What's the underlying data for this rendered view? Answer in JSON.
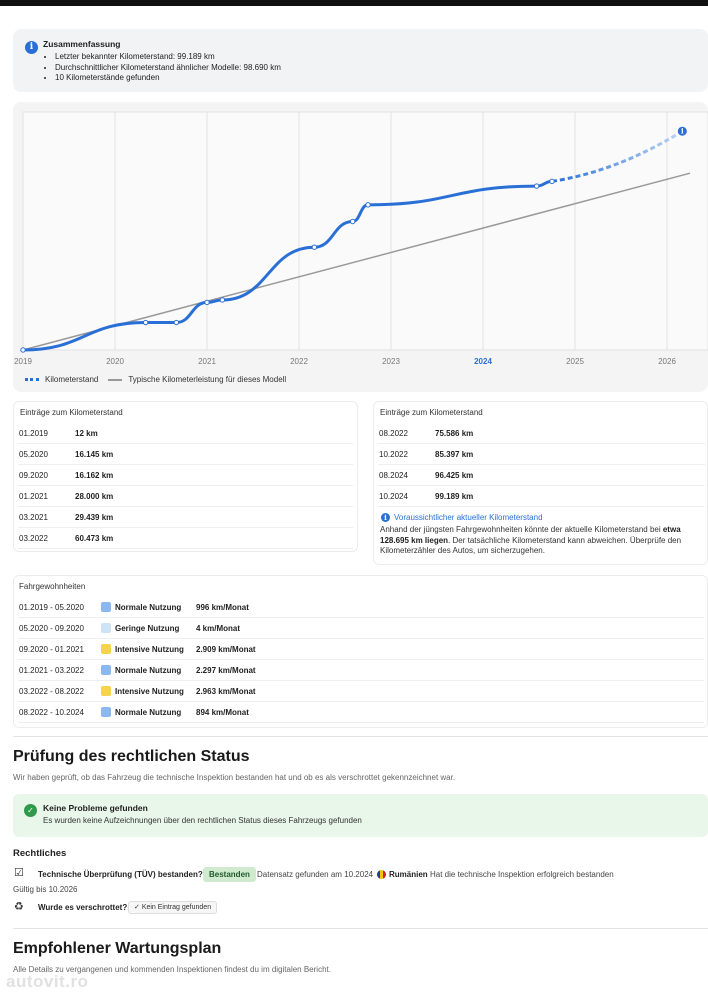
{
  "summary": {
    "icon": "info-icon",
    "title": "Zusammenfassung",
    "items": [
      "Letzter bekannter Kilometerstand: 99.189 km",
      "Durchschnittlicher Kilometerstand ähnlicher Modelle: 98.690 km",
      "10 Kilometerstände gefunden"
    ]
  },
  "chart_data": {
    "type": "line",
    "title": "",
    "xlabel": "",
    "ylabel": "",
    "x_ticks": [
      "2019",
      "2020",
      "2021",
      "2022",
      "2023",
      "2024",
      "2025",
      "2026"
    ],
    "highlighted_tick": "2024",
    "x_range": [
      2019.0,
      2026.3
    ],
    "y_range": [
      0,
      140000
    ],
    "grid": "vertical",
    "legend": "bottom-left",
    "colors": {
      "actual": "#2a6fd6",
      "typical": "#999999"
    },
    "series": [
      {
        "name": "Kilometerstand",
        "style": "solid",
        "points": [
          {
            "x": "01.2019",
            "y": 12
          },
          {
            "x": "05.2020",
            "y": 16145
          },
          {
            "x": "09.2020",
            "y": 16162
          },
          {
            "x": "01.2021",
            "y": 28000
          },
          {
            "x": "03.2021",
            "y": 29439
          },
          {
            "x": "03.2022",
            "y": 60473
          },
          {
            "x": "08.2022",
            "y": 75586
          },
          {
            "x": "10.2022",
            "y": 85397
          },
          {
            "x": "08.2024",
            "y": 96425
          },
          {
            "x": "10.2024",
            "y": 99189
          }
        ]
      },
      {
        "name": "Voraussichtlicher aktueller Kilometerstand",
        "style": "dashed",
        "points": [
          {
            "x": "10.2024",
            "y": 99189
          },
          {
            "x": "03.2026",
            "y": 128695
          }
        ]
      },
      {
        "name": "Typische Kilometerleistung für dieses Modell",
        "style": "solid",
        "points": [
          {
            "x": "01.2019",
            "y": 0
          },
          {
            "x": "04.2026",
            "y": 104000
          }
        ]
      }
    ],
    "legend_entries": [
      "Kilometerstand",
      "Typische Kilometerleistung für dieses Modell"
    ]
  },
  "entries": {
    "title": "Einträge zum Kilometerstand",
    "left": [
      {
        "date": "01.2019",
        "km": "12 km"
      },
      {
        "date": "05.2020",
        "km": "16.145 km"
      },
      {
        "date": "09.2020",
        "km": "16.162 km"
      },
      {
        "date": "01.2021",
        "km": "28.000 km"
      },
      {
        "date": "03.2021",
        "km": "29.439 km"
      },
      {
        "date": "03.2022",
        "km": "60.473 km"
      }
    ],
    "right": [
      {
        "date": "08.2022",
        "km": "75.586 km"
      },
      {
        "date": "10.2022",
        "km": "85.397 km"
      },
      {
        "date": "08.2024",
        "km": "96.425 km"
      },
      {
        "date": "10.2024",
        "km": "99.189 km"
      }
    ],
    "projection_title": "Voraussichtlicher aktueller Kilometerstand",
    "projection_pre": "Anhand der jüngsten Fahrgewohnheiten könnte der aktuelle Kilometerstand bei ",
    "projection_bold": "etwa 128.695 km liegen",
    "projection_post": ". Der tatsächliche Kilometerstand kann abweichen. Überprüfe den Kilometerzähler des Autos, um sicherzugehen."
  },
  "habits": {
    "title": "Fahrgewohnheiten",
    "rows": [
      {
        "period": "01.2019 - 05.2020",
        "usage": "Normale Nutzung",
        "color": "#8bb8ee",
        "rate": "996 km/Monat"
      },
      {
        "period": "05.2020 - 09.2020",
        "usage": "Geringe Nutzung",
        "color": "#cfe3f7",
        "rate": "4 km/Monat"
      },
      {
        "period": "09.2020 - 01.2021",
        "usage": "Intensive Nutzung",
        "color": "#f6d44a",
        "rate": "2.909 km/Monat"
      },
      {
        "period": "01.2021 - 03.2022",
        "usage": "Normale Nutzung",
        "color": "#8bb8ee",
        "rate": "2.297 km/Monat"
      },
      {
        "period": "03.2022 - 08.2022",
        "usage": "Intensive Nutzung",
        "color": "#f6d44a",
        "rate": "2.963 km/Monat"
      },
      {
        "period": "08.2022 - 10.2024",
        "usage": "Normale Nutzung",
        "color": "#8bb8ee",
        "rate": "894 km/Monat"
      }
    ]
  },
  "legal": {
    "heading": "Prüfung des rechtlichen Status",
    "subtitle": "Wir haben geprüft, ob das Fahrzeug die technische Inspektion bestanden hat und ob es als verschrottet gekennzeichnet war.",
    "ok_title": "Keine Probleme gefunden",
    "ok_text": "Es wurden keine Aufzeichnungen über den rechtlichen Status dieses Fahrzeugs gefunden",
    "section": "Rechtliches",
    "tuv_label": "Technische Überprüfung (TÜV) bestanden?",
    "tuv_badge": "Bestanden",
    "tuv_record": "Datensatz gefunden am 10.2024",
    "tuv_country": "Rumänien",
    "tuv_result": "Hat die technische Inspektion erfolgreich bestanden",
    "tuv_valid": "Gültig bis 10.2026",
    "scrap_label": "Wurde es verschrottet?",
    "scrap_chip": "Kein Eintrag gefunden"
  },
  "maintenance": {
    "heading": "Empfohlener Wartungsplan",
    "subtitle": "Alle Details zu vergangenen und kommenden Inspektionen findest du im digitalen Bericht."
  },
  "watermark": "autovit.ro"
}
